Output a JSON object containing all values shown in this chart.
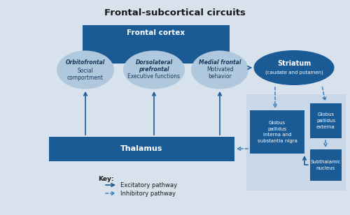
{
  "title": "Frontal-subcortical circuits",
  "bg_color": "#d8e2ec",
  "dark_blue": "#1a5b96",
  "medium_blue": "#2e75b6",
  "light_blue_ellipse": "#b0c8de",
  "light_blue_box": "#c8d8e8",
  "frontal_cortex_label": "Frontal cortex",
  "thalamus_label": "Thalamus",
  "striatum_label": "Striatum",
  "striatum_sub": "(caudate and putamen)",
  "orbitofrontal_label1": "Orbitofrontal",
  "orbitofrontal_label2": "Social",
  "orbitofrontal_label3": "comportment",
  "dorsolateral_label1": "Dorsolateral",
  "dorsolateral_label2": "prefrontal",
  "dorsolateral_label3": "Executive functions",
  "medial_label1": "Medial frontal",
  "medial_label2": "Motivated",
  "medial_label3": "behavior",
  "gpi_label": "Globus\npallidus\ninterna and\nsubstantia nigra",
  "gpe_label": "Globus\npallidus\nexterna",
  "stn_label": "Subthalamic\nnucleus",
  "key_excitatory": "Excitatory pathway",
  "key_inhibitory": "Inhibitory pathway"
}
